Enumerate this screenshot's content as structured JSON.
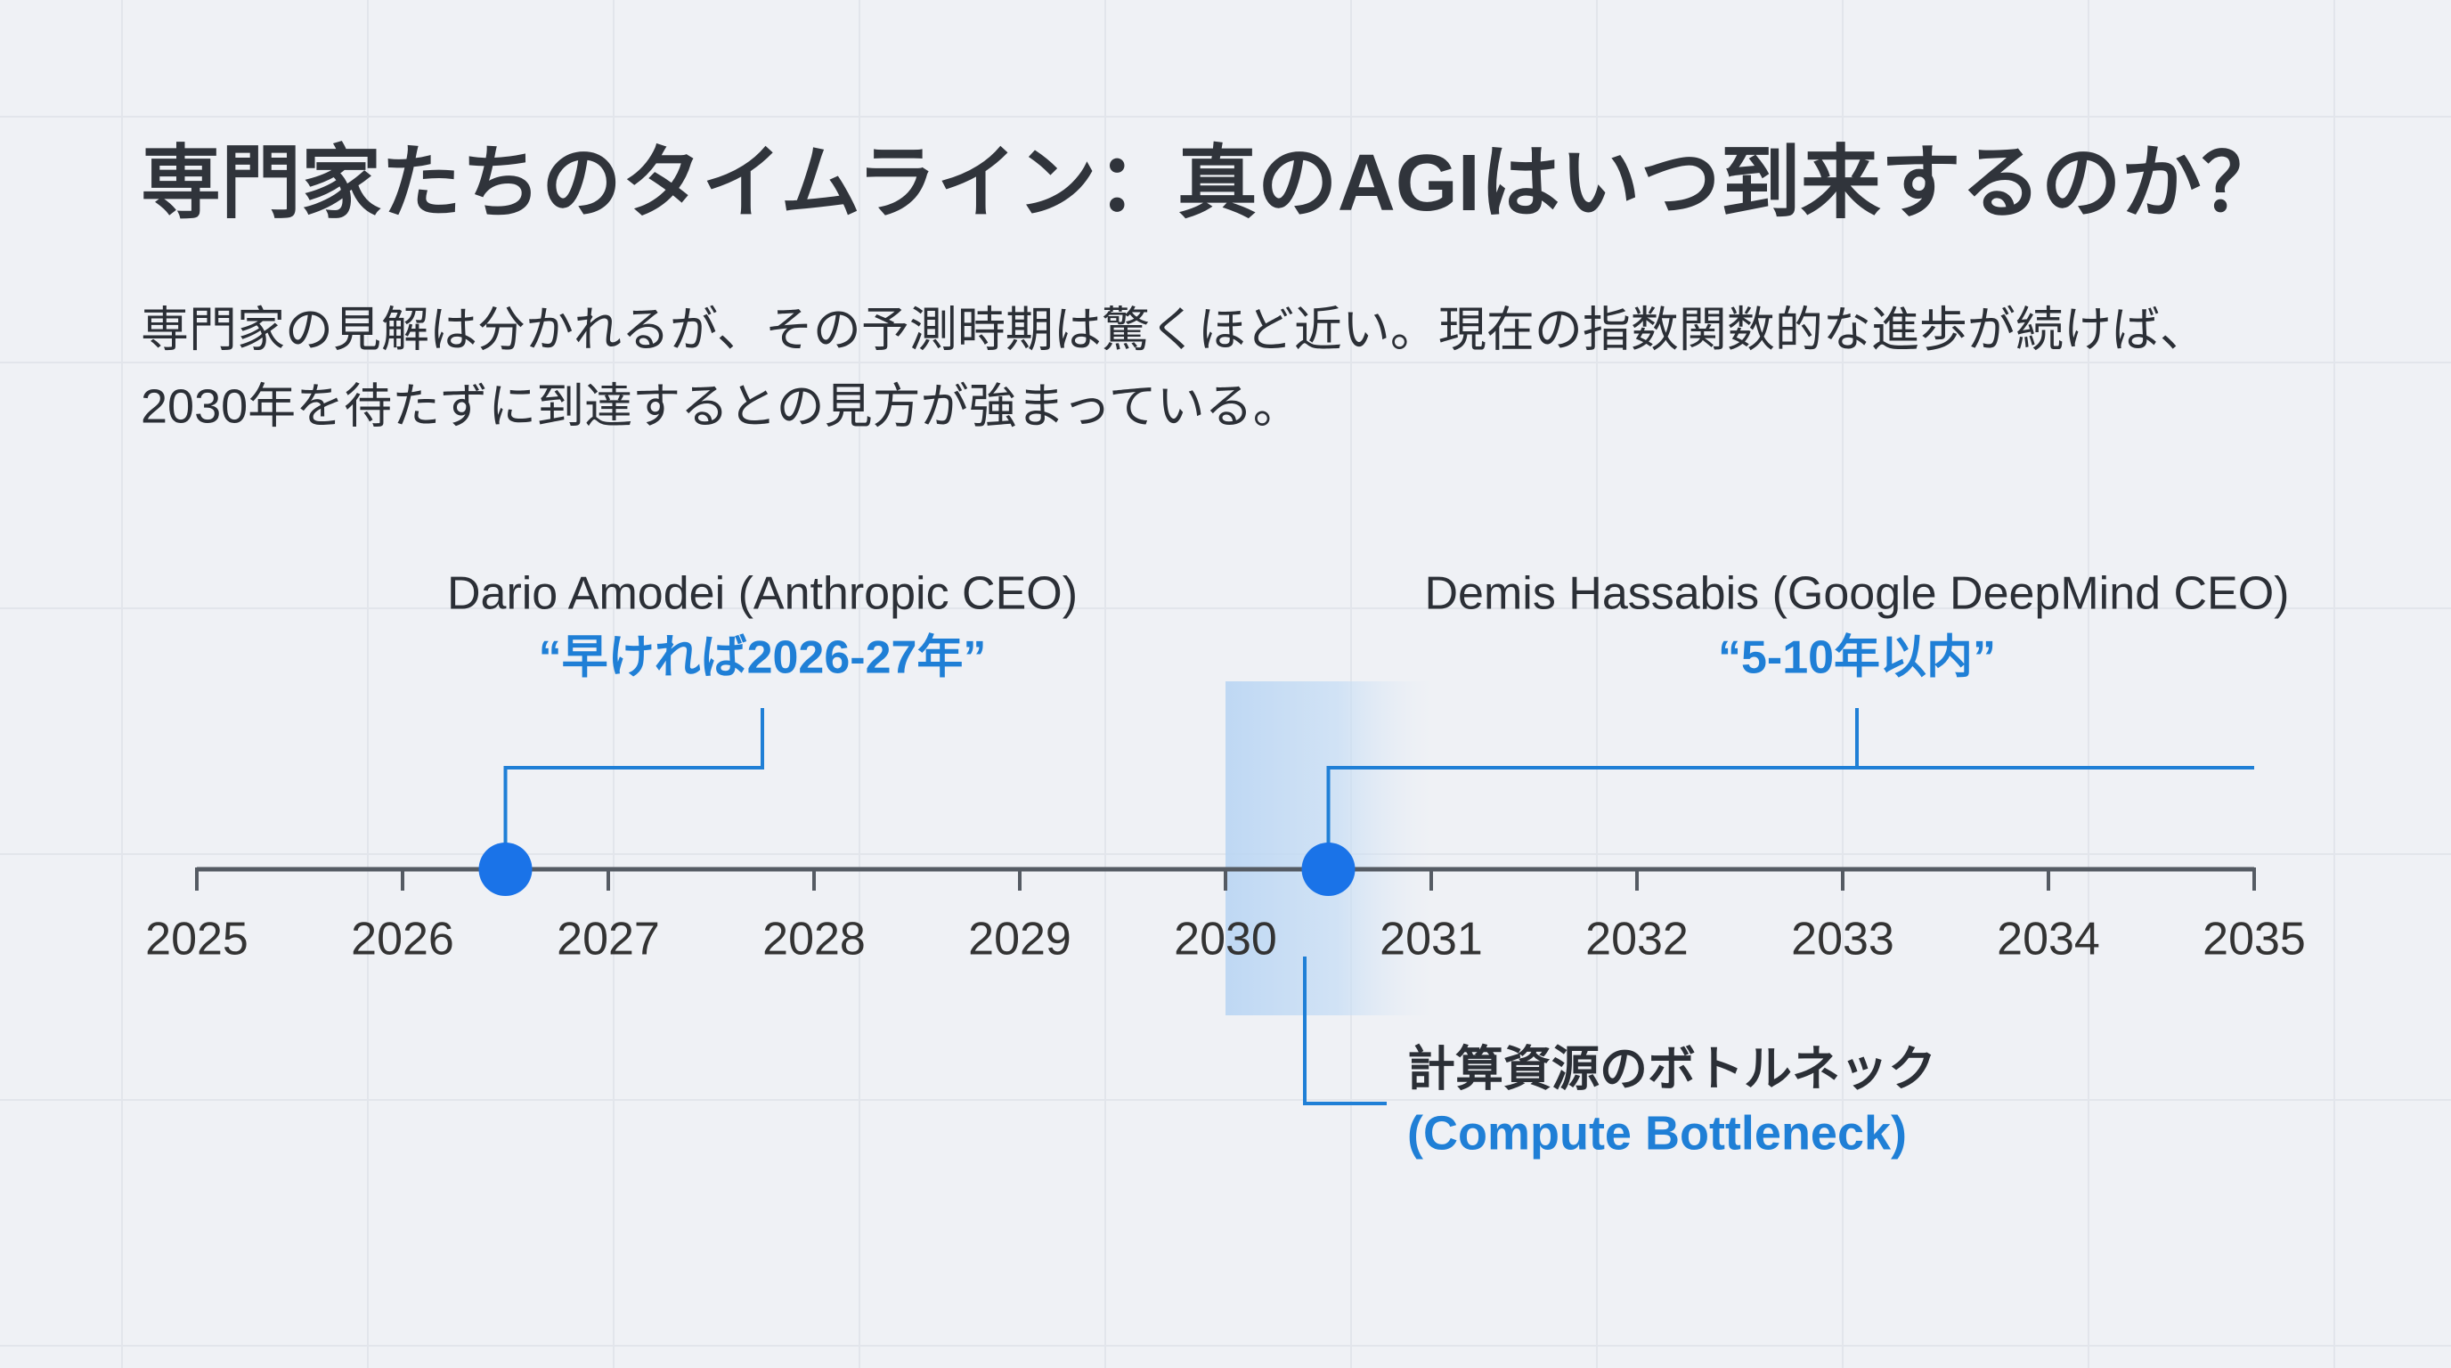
{
  "chart_data": {
    "type": "timeline",
    "title": "専門家たちのタイムライン：真のAGIはいつ到来するのか？",
    "subtitle": [
      "専門家の見解は分かれるが、その予測時期は驚くほど近い。現在の指数関数的な進歩が続けば、",
      "2030年を待たずに到達するとの見方が強まっている。"
    ],
    "xlim": [
      2025,
      2035
    ],
    "xticks": [
      2025,
      2026,
      2027,
      2028,
      2029,
      2030,
      2031,
      2032,
      2033,
      2034,
      2035
    ],
    "color": "#1a73e8",
    "events": [
      {
        "name": "Dario Amodei (Anthropic CEO)",
        "quote": "“早ければ2026-27年”",
        "x": 2026.5
      },
      {
        "name": "Demis Hassabis (Google DeepMind CEO)",
        "quote": "“5-10年以内”",
        "x": 2030.5,
        "x_end": 2035
      }
    ],
    "band": {
      "range": [
        2030,
        2031
      ],
      "label": "計算資源のボトルネック",
      "sublabel": "(Compute Bottleneck)"
    }
  }
}
